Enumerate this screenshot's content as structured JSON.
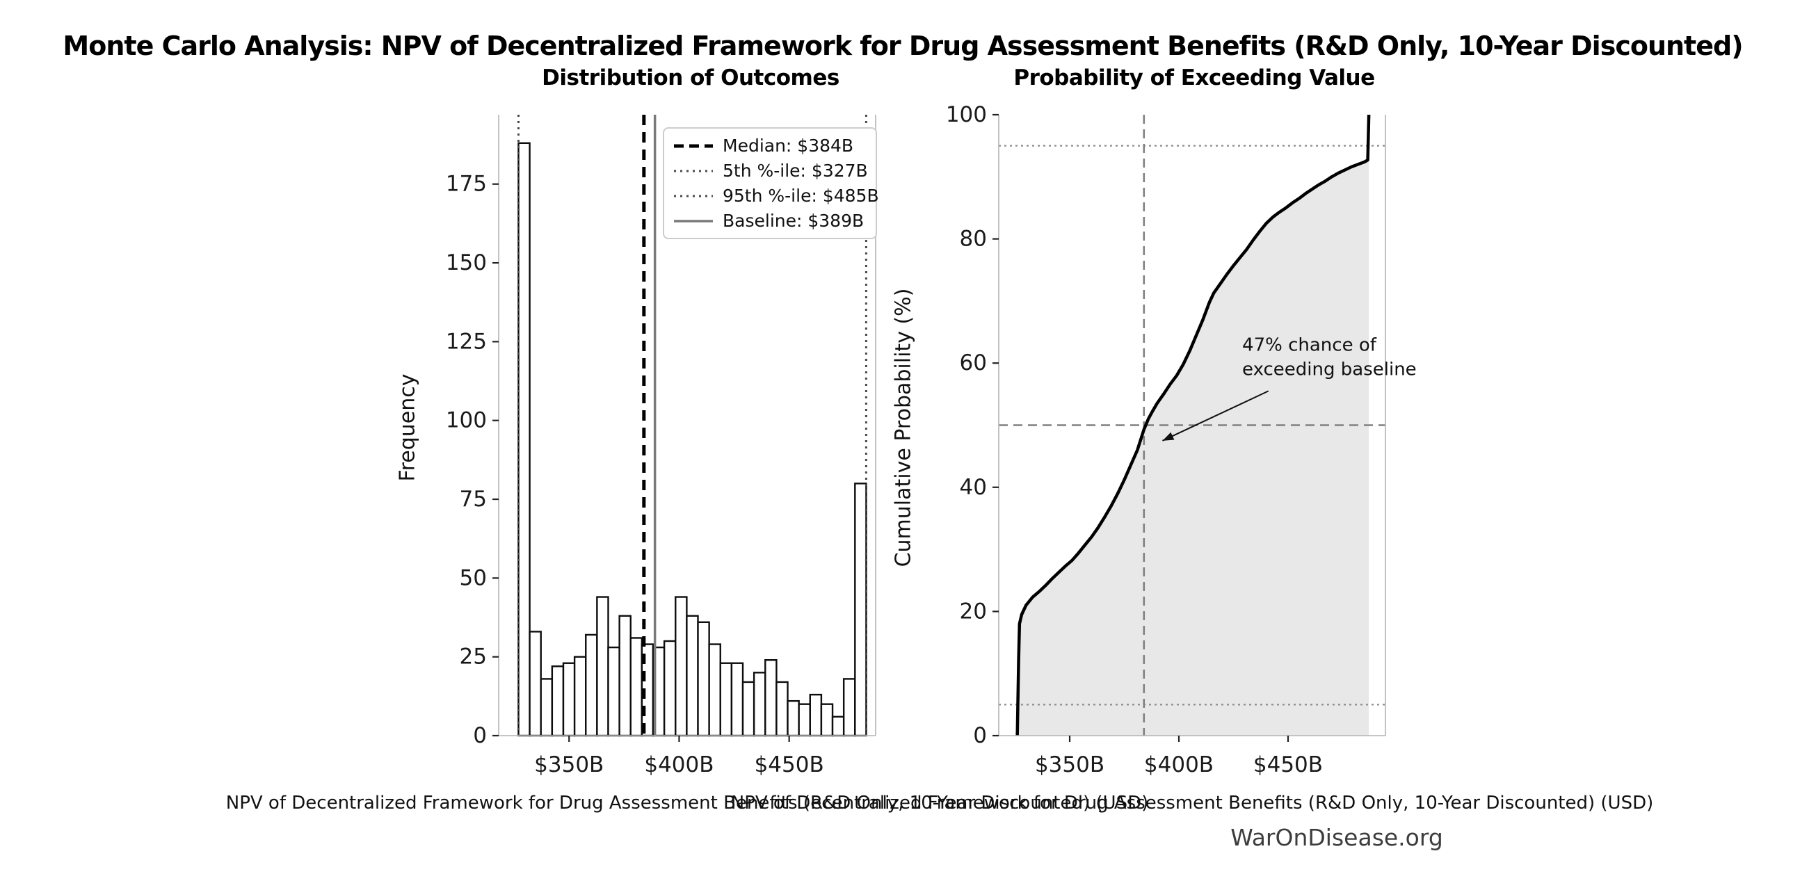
{
  "figure": {
    "title": "Monte Carlo Analysis: NPV of Decentralized Framework for Drug Assessment Benefits (R&D Only, 10-Year Discounted)"
  },
  "footer": {
    "watermark": "WarOnDisease.org"
  },
  "chart_data": [
    {
      "type": "bar",
      "title": "Distribution of Outcomes",
      "xlabel": "NPV of Decentralized Framework for Drug Assessment Benefits (R&D Only, 10-Year Discounted) (USD)",
      "ylabel": "Frequency",
      "xlim": [
        318,
        489.3
      ],
      "ylim": [
        0,
        197
      ],
      "grid": false,
      "bar_fill": "#ffffff",
      "bar_edge": "#0d0d0d",
      "bin_start": 327,
      "bin_width": 5.097,
      "values": [
        188,
        33,
        18,
        22,
        23,
        25,
        32,
        44,
        28,
        38,
        31,
        29,
        28,
        30,
        44,
        38,
        36,
        29,
        23,
        23,
        17,
        20,
        24,
        17,
        11,
        10,
        13,
        10,
        6,
        18,
        80
      ],
      "xticks": [
        {
          "v": 350,
          "label": "$350B"
        },
        {
          "v": 400,
          "label": "$400B"
        },
        {
          "v": 450,
          "label": "$450B"
        }
      ],
      "yticks": [
        {
          "v": 0,
          "label": "0"
        },
        {
          "v": 25,
          "label": "25"
        },
        {
          "v": 50,
          "label": "50"
        },
        {
          "v": 75,
          "label": "75"
        },
        {
          "v": 100,
          "label": "100"
        },
        {
          "v": 125,
          "label": "125"
        },
        {
          "v": 150,
          "label": "150"
        },
        {
          "v": 175,
          "label": "175"
        }
      ],
      "ref_lines": [
        {
          "name": "percentile-5-line",
          "v": 327,
          "color": "#4a4a4a",
          "width": 3,
          "dash": "3 6",
          "label": "5th %-ile: $327B"
        },
        {
          "name": "percentile-95-line",
          "v": 485,
          "color": "#4a4a4a",
          "width": 3,
          "dash": "3 6",
          "label": "95th %-ile: $485B"
        },
        {
          "name": "median-line",
          "v": 384,
          "color": "#000000",
          "width": 5,
          "dash": "15 10",
          "label": "Median: $384B"
        },
        {
          "name": "baseline-line",
          "v": 389,
          "color": "#7a7a7a",
          "width": 3.5,
          "dash": "",
          "label": "Baseline: $389B"
        }
      ],
      "legend": {
        "position": "upper right",
        "items": [
          {
            "label": "Median: $384B",
            "color": "#000000",
            "width": 5,
            "dash": "14 8"
          },
          {
            "label": "5th %-ile: $327B",
            "color": "#4a4a4a",
            "width": 3,
            "dash": "3 6"
          },
          {
            "label": "95th %-ile: $485B",
            "color": "#4a4a4a",
            "width": 3,
            "dash": "3 6"
          },
          {
            "label": "Baseline: $389B",
            "color": "#7a7a7a",
            "width": 3.5,
            "dash": ""
          }
        ]
      }
    },
    {
      "type": "line",
      "title": "Probability of Exceeding Value",
      "xlabel": "NPV of Decentralized Framework for Drug Assessment Benefits (R&D Only, 10-Year Discounted) (USD)",
      "ylabel": "Cumulative Probability (%)",
      "xlim": [
        317.5,
        494.6
      ],
      "ylim": [
        0,
        100
      ],
      "grid": false,
      "line_color": "#000000",
      "line_width": 4.5,
      "fill_color": "#e8e8e8",
      "xticks": [
        {
          "v": 350,
          "label": "$350B"
        },
        {
          "v": 400,
          "label": "$400B"
        },
        {
          "v": 450,
          "label": "$450B"
        }
      ],
      "yticks": [
        {
          "v": 0,
          "label": "0"
        },
        {
          "v": 20,
          "label": "20"
        },
        {
          "v": 40,
          "label": "40"
        },
        {
          "v": 60,
          "label": "60"
        },
        {
          "v": 80,
          "label": "80"
        },
        {
          "v": 100,
          "label": "100"
        }
      ],
      "curve": [
        [
          326,
          0
        ],
        [
          326.3,
          6
        ],
        [
          326.6,
          12
        ],
        [
          327,
          18
        ],
        [
          328,
          19.5
        ],
        [
          330,
          21
        ],
        [
          333,
          22.3
        ],
        [
          336,
          23.2
        ],
        [
          339,
          24.2
        ],
        [
          342,
          25.3
        ],
        [
          345,
          26.3
        ],
        [
          348,
          27.3
        ],
        [
          351,
          28.2
        ],
        [
          354,
          29.4
        ],
        [
          357,
          30.7
        ],
        [
          360,
          32
        ],
        [
          363,
          33.5
        ],
        [
          366,
          35.2
        ],
        [
          369,
          37
        ],
        [
          372,
          39
        ],
        [
          375,
          41.2
        ],
        [
          378,
          43.6
        ],
        [
          381,
          46
        ],
        [
          384,
          49.3
        ],
        [
          386,
          51
        ],
        [
          388,
          52.3
        ],
        [
          390,
          53.5
        ],
        [
          393,
          55
        ],
        [
          396,
          56.6
        ],
        [
          399,
          58
        ],
        [
          402,
          59.8
        ],
        [
          405,
          62
        ],
        [
          408,
          64.5
        ],
        [
          411,
          67
        ],
        [
          414,
          69.8
        ],
        [
          416,
          71.3
        ],
        [
          419,
          72.8
        ],
        [
          422,
          74.3
        ],
        [
          425,
          75.7
        ],
        [
          428,
          77
        ],
        [
          431,
          78.3
        ],
        [
          434,
          79.8
        ],
        [
          437,
          81.2
        ],
        [
          440,
          82.5
        ],
        [
          443,
          83.5
        ],
        [
          446,
          84.3
        ],
        [
          449,
          85
        ],
        [
          452,
          85.8
        ],
        [
          455,
          86.5
        ],
        [
          458,
          87.3
        ],
        [
          461,
          88
        ],
        [
          464,
          88.7
        ],
        [
          467,
          89.3
        ],
        [
          470,
          90
        ],
        [
          473,
          90.6
        ],
        [
          476,
          91.1
        ],
        [
          479,
          91.6
        ],
        [
          482,
          92
        ],
        [
          485,
          92.4
        ],
        [
          486.5,
          92.7
        ],
        [
          487,
          100
        ]
      ],
      "ref_lines": [
        {
          "name": "dotted-5pct-line",
          "axis": "y",
          "v": 5,
          "color": "#8c8c8c",
          "width": 2.2,
          "dash": "3 5"
        },
        {
          "name": "dotted-95pct-line",
          "axis": "y",
          "v": 95,
          "color": "#8c8c8c",
          "width": 2.2,
          "dash": "3 5"
        },
        {
          "name": "crosshair-50pct-line",
          "axis": "y",
          "v": 50,
          "color": "#808080",
          "width": 2.6,
          "dash": "13 8"
        },
        {
          "name": "crosshair-median-line",
          "axis": "x",
          "v": 384,
          "color": "#808080",
          "width": 2.6,
          "dash": "13 8"
        }
      ],
      "annotation": {
        "lines": [
          "47% chance of",
          "exceeding baseline"
        ],
        "text_x": 429,
        "text_y": 62,
        "arrow_from": [
          441,
          55.5
        ],
        "arrow_to": [
          392.5,
          47.5
        ]
      }
    }
  ]
}
